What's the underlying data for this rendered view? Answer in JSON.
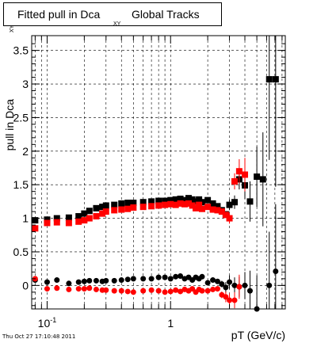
{
  "title": {
    "part1": "Fitted pull in Dca",
    "subscript": "XY",
    "part2": "Global Tracks"
  },
  "timestamp": "Thu Oct 27 17:10:48 2011",
  "chart_data": {
    "type": "scatter",
    "xlabel": "pT (GeV/c)",
    "ylabel": "pull in Dca",
    "ylabel_sub": "XY",
    "x_scale": "log",
    "xlim": [
      0.075,
      8.5
    ],
    "ylim": [
      -0.35,
      3.72
    ],
    "x_tick_labels": [
      {
        "value": 0.1,
        "base": "10",
        "exp": "-1"
      },
      {
        "value": 1,
        "base": "1",
        "exp": ""
      }
    ],
    "y_tick_labels": [
      {
        "value": 0,
        "label": "0"
      },
      {
        "value": 0.5,
        "label": "0.5"
      },
      {
        "value": 1,
        "label": "1"
      },
      {
        "value": 1.5,
        "label": "1.5"
      },
      {
        "value": 2,
        "label": "2"
      },
      {
        "value": 2.5,
        "label": "2.5"
      },
      {
        "value": 3,
        "label": "3"
      },
      {
        "value": 3.5,
        "label": "3.5"
      }
    ],
    "grid": true,
    "series": [
      {
        "color": "#000000",
        "marker": "square",
        "x": [
          0.08,
          0.1,
          0.12,
          0.15,
          0.18,
          0.2,
          0.22,
          0.25,
          0.28,
          0.3,
          0.35,
          0.4,
          0.45,
          0.5,
          0.6,
          0.7,
          0.8,
          0.9,
          1.0,
          1.1,
          1.2,
          1.3,
          1.4,
          1.5,
          1.6,
          1.7,
          1.8,
          2.0,
          2.2,
          2.4,
          2.6,
          2.8,
          3.0,
          3.3,
          3.6,
          4.0,
          4.4,
          5.0,
          5.6,
          6.3,
          7.1
        ],
        "y": [
          0.97,
          0.98,
          1.0,
          1.01,
          1.03,
          1.07,
          1.11,
          1.15,
          1.17,
          1.19,
          1.2,
          1.22,
          1.23,
          1.23,
          1.24,
          1.25,
          1.26,
          1.26,
          1.27,
          1.28,
          1.29,
          1.27,
          1.3,
          1.28,
          1.25,
          1.28,
          1.24,
          1.27,
          1.22,
          1.18,
          1.12,
          1.06,
          1.2,
          1.24,
          1.58,
          1.49,
          1.25,
          1.62,
          1.58,
          3.07,
          3.07
        ],
        "err": [
          0,
          0,
          0,
          0,
          0,
          0,
          0,
          0,
          0,
          0,
          0,
          0,
          0,
          0,
          0,
          0,
          0,
          0,
          0,
          0,
          0,
          0,
          0,
          0,
          0,
          0,
          0,
          0,
          0,
          0,
          0,
          0,
          0.08,
          0.1,
          0.15,
          0.2,
          0.3,
          0.45,
          0.7,
          1.2,
          1.6
        ]
      },
      {
        "color": "#ff0000",
        "marker": "square",
        "x": [
          0.08,
          0.1,
          0.12,
          0.15,
          0.18,
          0.2,
          0.22,
          0.25,
          0.28,
          0.3,
          0.35,
          0.4,
          0.45,
          0.5,
          0.6,
          0.7,
          0.8,
          0.9,
          1.0,
          1.1,
          1.2,
          1.3,
          1.4,
          1.5,
          1.6,
          1.7,
          1.8,
          2.0,
          2.2,
          2.4,
          2.6,
          2.8,
          3.0,
          3.3,
          3.6,
          4.0
        ],
        "y": [
          0.85,
          0.93,
          0.94,
          0.93,
          0.95,
          0.97,
          1.0,
          1.03,
          1.07,
          1.1,
          1.12,
          1.13,
          1.14,
          1.16,
          1.17,
          1.18,
          1.19,
          1.2,
          1.21,
          1.2,
          1.22,
          1.21,
          1.22,
          1.19,
          1.15,
          1.2,
          1.14,
          1.17,
          1.13,
          1.12,
          1.1,
          1.05,
          1.0,
          1.55,
          1.7,
          1.65
        ],
        "err": [
          0,
          0,
          0,
          0,
          0,
          0,
          0,
          0,
          0,
          0,
          0,
          0,
          0,
          0,
          0,
          0,
          0,
          0,
          0,
          0,
          0,
          0,
          0,
          0,
          0,
          0,
          0,
          0,
          0,
          0,
          0,
          0,
          0.08,
          0.12,
          0.18,
          0.25
        ]
      },
      {
        "color": "#000000",
        "marker": "circle",
        "x": [
          0.08,
          0.1,
          0.12,
          0.15,
          0.18,
          0.2,
          0.22,
          0.25,
          0.28,
          0.3,
          0.35,
          0.4,
          0.45,
          0.5,
          0.6,
          0.7,
          0.8,
          0.9,
          1.0,
          1.1,
          1.2,
          1.3,
          1.4,
          1.5,
          1.6,
          1.7,
          1.8,
          2.0,
          2.2,
          2.4,
          2.6,
          2.8,
          3.0,
          3.3,
          3.6,
          4.0,
          4.4,
          5.0,
          6.3,
          7.1
        ],
        "y": [
          0.08,
          0.05,
          0.08,
          0.03,
          0.05,
          0.06,
          0.07,
          0.07,
          0.06,
          0.07,
          0.07,
          0.08,
          0.09,
          0.1,
          0.1,
          0.1,
          0.12,
          0.12,
          0.1,
          0.13,
          0.14,
          0.1,
          0.12,
          0.08,
          0.12,
          0.1,
          0.13,
          0.04,
          0.08,
          0.06,
          0.02,
          -0.03,
          0.05,
          0.0,
          -0.02,
          0.0,
          -0.08,
          -0.35,
          0.0,
          0.21
        ],
        "err": [
          0,
          0,
          0,
          0,
          0,
          0,
          0,
          0,
          0,
          0,
          0,
          0,
          0,
          0,
          0,
          0,
          0,
          0,
          0,
          0,
          0,
          0,
          0,
          0,
          0,
          0,
          0,
          0,
          0,
          0,
          0.05,
          0.08,
          0.1,
          0.12,
          0.15,
          0.2,
          0.3,
          0.5,
          0.8,
          1.0
        ]
      },
      {
        "color": "#ff0000",
        "marker": "circle",
        "x": [
          0.08,
          0.1,
          0.12,
          0.15,
          0.18,
          0.2,
          0.22,
          0.25,
          0.28,
          0.3,
          0.35,
          0.4,
          0.45,
          0.5,
          0.6,
          0.7,
          0.8,
          0.9,
          1.0,
          1.1,
          1.2,
          1.3,
          1.4,
          1.5,
          1.6,
          1.7,
          1.8,
          2.0,
          2.2,
          2.4,
          2.6,
          2.8,
          3.0,
          3.3,
          3.6
        ],
        "y": [
          0.1,
          -0.05,
          -0.04,
          -0.06,
          -0.05,
          -0.05,
          -0.04,
          -0.06,
          -0.07,
          -0.07,
          -0.08,
          -0.08,
          -0.09,
          -0.1,
          -0.08,
          -0.07,
          -0.08,
          -0.1,
          -0.09,
          -0.07,
          -0.09,
          -0.06,
          -0.08,
          -0.05,
          -0.1,
          -0.06,
          -0.08,
          -0.08,
          -0.06,
          -0.05,
          -0.14,
          -0.17,
          -0.22,
          -0.22,
          -0.02
        ],
        "err": [
          0,
          0,
          0,
          0,
          0,
          0,
          0,
          0,
          0,
          0,
          0,
          0,
          0,
          0,
          0,
          0,
          0,
          0,
          0,
          0,
          0,
          0,
          0,
          0,
          0,
          0,
          0,
          0,
          0,
          0,
          0.05,
          0.08,
          0.1,
          0.12,
          0.18
        ]
      }
    ]
  }
}
